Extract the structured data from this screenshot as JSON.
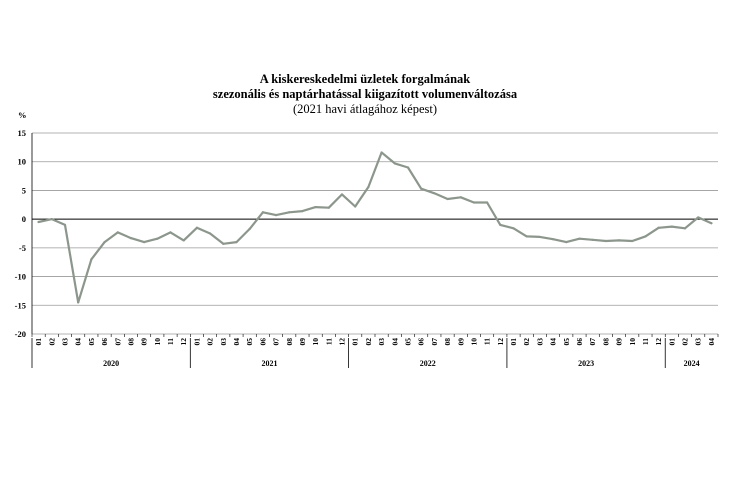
{
  "chart_data": {
    "type": "line",
    "title": "A kiskereskedelmi üzletek forgalmának",
    "title_line2": "szezonális és naptárhatással kiigazított volumenváltozása",
    "subtitle": "(2021 havi átlagához képest)",
    "ylabel": "%",
    "ylim": [
      -20,
      15
    ],
    "yticks": [
      15,
      10,
      5,
      0,
      -5,
      -10,
      -15,
      -20
    ],
    "grid": true,
    "colors": {
      "line": "#8c968c",
      "grid": "#9a9a9a",
      "zero": "#000000"
    },
    "months": [
      "01",
      "02",
      "03",
      "04",
      "05",
      "06",
      "07",
      "08",
      "09",
      "10",
      "11",
      "12",
      "01",
      "02",
      "03",
      "04",
      "05",
      "06",
      "07",
      "08",
      "09",
      "10",
      "11",
      "12",
      "01",
      "02",
      "03",
      "04",
      "05",
      "06",
      "07",
      "08",
      "09",
      "10",
      "11",
      "12",
      "01",
      "02",
      "03",
      "04",
      "05",
      "06",
      "07",
      "08",
      "09",
      "10",
      "11",
      "12",
      "01",
      "02",
      "03",
      "04"
    ],
    "years": [
      {
        "label": "2020",
        "count": 12
      },
      {
        "label": "2021",
        "count": 12
      },
      {
        "label": "2022",
        "count": 12
      },
      {
        "label": "2023",
        "count": 12
      },
      {
        "label": "2024",
        "count": 4
      }
    ],
    "series": [
      {
        "name": "Volumenváltozás",
        "values": [
          -0.5,
          0.0,
          -1.0,
          -14.5,
          -7.0,
          -4.0,
          -2.3,
          -3.3,
          -4.0,
          -3.4,
          -2.3,
          -3.7,
          -1.5,
          -2.5,
          -4.3,
          -4.0,
          -1.7,
          1.2,
          0.7,
          1.2,
          1.4,
          2.1,
          2.0,
          4.3,
          2.2,
          5.6,
          11.6,
          9.7,
          9.0,
          5.3,
          4.5,
          3.5,
          3.8,
          2.9,
          2.9,
          -1.0,
          -1.6,
          -3.0,
          -3.1,
          -3.5,
          -4.0,
          -3.4,
          -3.6,
          -3.8,
          -3.7,
          -3.8,
          -3.0,
          -1.5,
          -1.3,
          -1.6,
          0.3,
          -0.7
        ]
      }
    ]
  }
}
